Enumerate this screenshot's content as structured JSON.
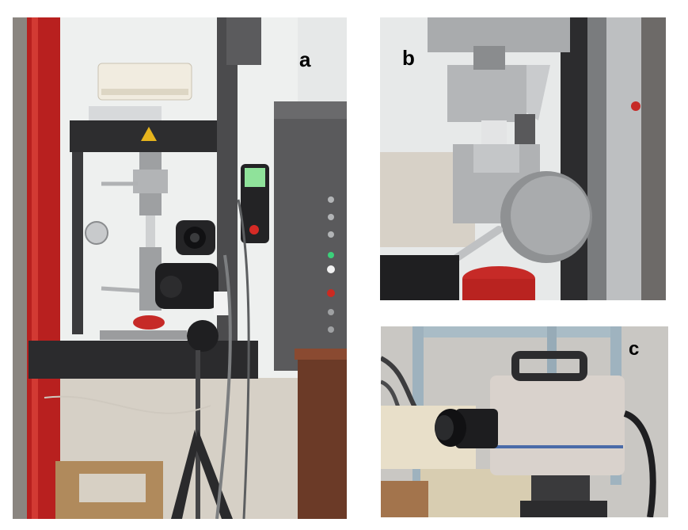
{
  "figure": {
    "panels": [
      {
        "letter": "a",
        "subject": "universal-testing-machine-with-camera-on-tripod"
      },
      {
        "letter": "b",
        "subject": "specimen-grips-close-up"
      },
      {
        "letter": "c",
        "subject": "high-speed-camera"
      }
    ]
  },
  "colors": {
    "frame_red": "#b8201f",
    "machine_grey": "#4a4a4c",
    "metal": "#a7a9ab",
    "floor": "#d8d2c8",
    "wall": "#eceeee",
    "camera_body": "#d9d2cc",
    "label_text": "#000000"
  }
}
